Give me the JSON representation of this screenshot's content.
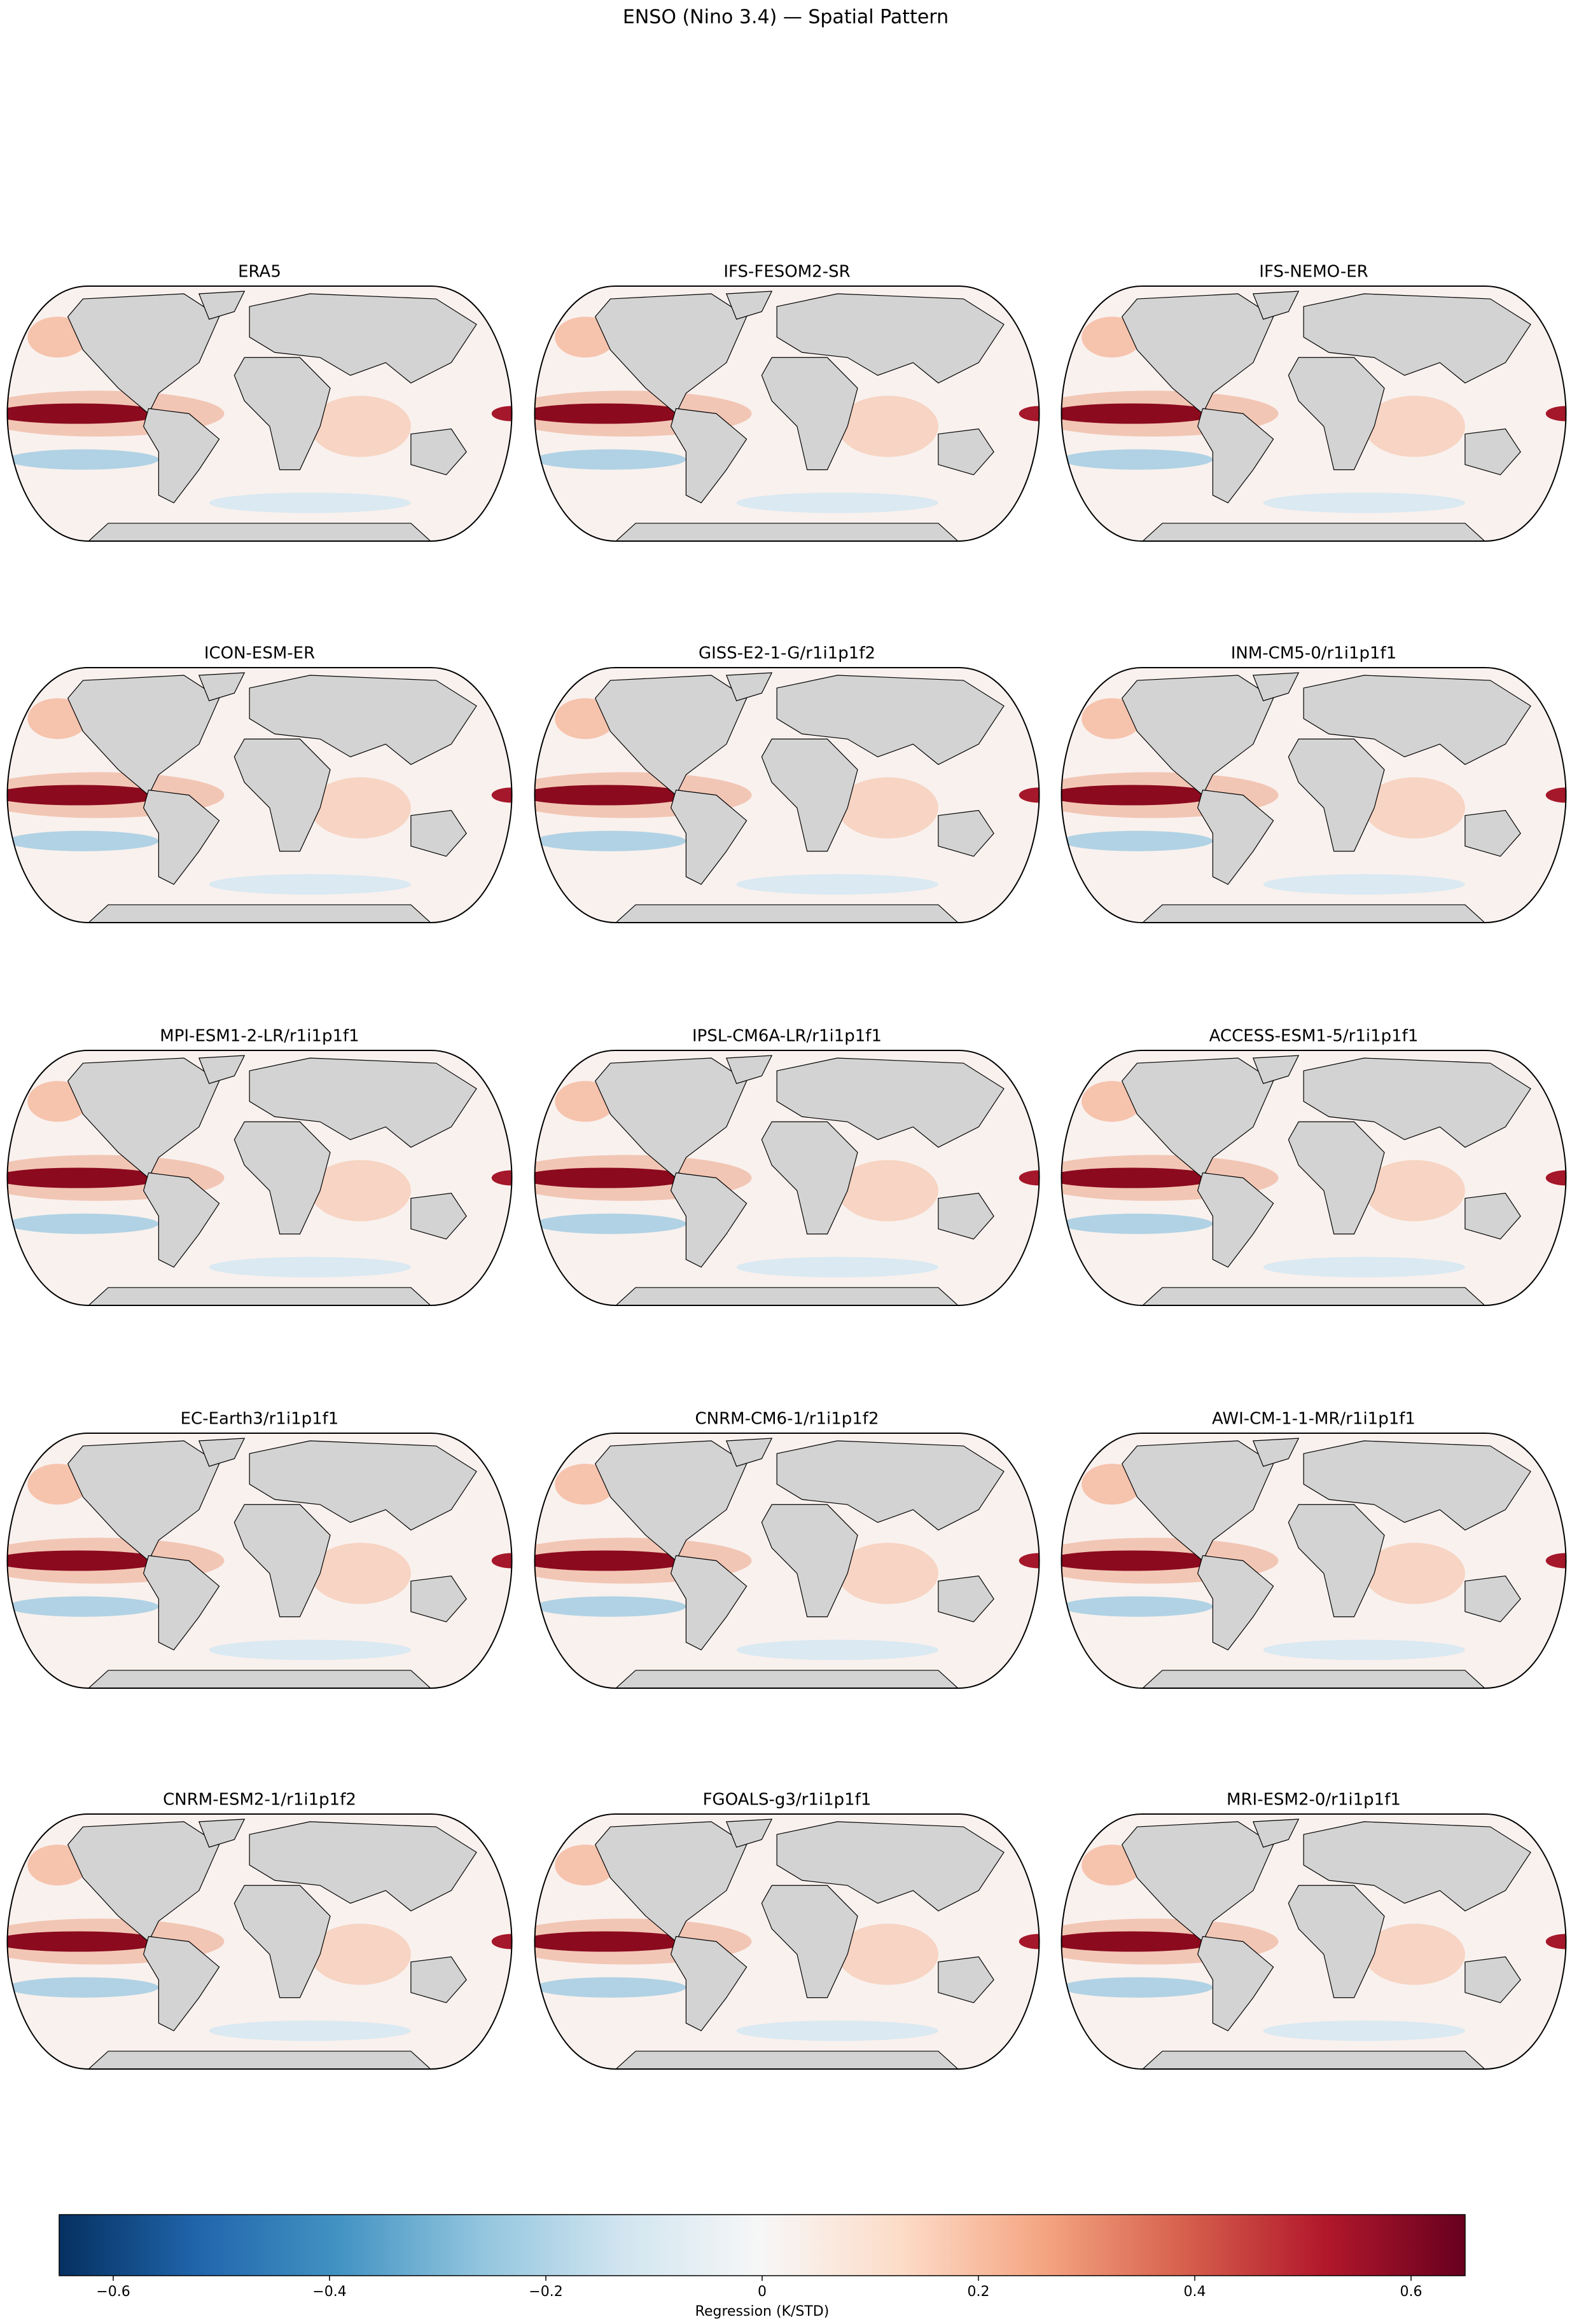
{
  "title": "ENSO (Nino 3.4) — Spatial Pattern",
  "panels": [
    "ERA5",
    "IFS-FESOM2-SR",
    "IFS-NEMO-ER",
    "ICON-ESM-ER",
    "GISS-E2-1-G/r1i1p1f2",
    "INM-CM5-0/r1i1p1f1",
    "MPI-ESM1-2-LR/r1i1p1f1",
    "IPSL-CM6A-LR/r1i1p1f1",
    "ACCESS-ESM1-5/r1i1p1f1",
    "EC-Earth3/r1i1p1f1",
    "CNRM-CM6-1/r1i1p1f2",
    "AWI-CM-1-1-MR/r1i1p1f1",
    "CNRM-ESM2-1/r1i1p1f2",
    "FGOALS-g3/r1i1p1f1",
    "MRI-ESM2-0/r1i1p1f1"
  ],
  "colorbar": {
    "label": "Regression (K/STD)",
    "lim": [
      -0.65,
      0.65
    ],
    "ticks": [
      {
        "value": -0.6,
        "label": "−0.6"
      },
      {
        "value": -0.4,
        "label": "−0.4"
      },
      {
        "value": -0.2,
        "label": "−0.2"
      },
      0.0,
      0.2,
      0.4,
      0.6
    ]
  }
}
